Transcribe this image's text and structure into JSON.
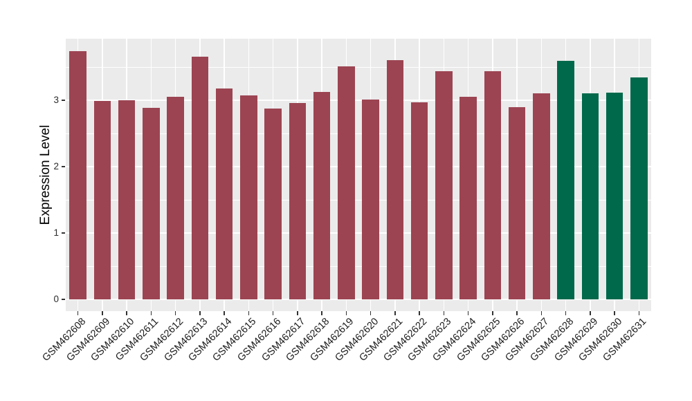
{
  "chart_data": {
    "type": "bar",
    "title": "",
    "ylabel": "Expression Level",
    "xlabel": "",
    "categories": [
      "GSM462608",
      "GSM462609",
      "GSM462610",
      "GSM462611",
      "GSM462612",
      "GSM462613",
      "GSM462614",
      "GSM462615",
      "GSM462616",
      "GSM462617",
      "GSM462618",
      "GSM462619",
      "GSM462620",
      "GSM462621",
      "GSM462622",
      "GSM462623",
      "GSM462624",
      "GSM462625",
      "GSM462626",
      "GSM462627",
      "GSM462628",
      "GSM462629",
      "GSM462630",
      "GSM462631"
    ],
    "values": [
      3.74,
      2.99,
      3.0,
      2.89,
      3.05,
      3.66,
      3.18,
      3.07,
      2.87,
      2.96,
      3.13,
      3.51,
      3.01,
      3.6,
      2.97,
      3.44,
      3.05,
      3.44,
      2.9,
      3.1,
      3.59,
      3.1,
      3.11,
      3.34
    ],
    "groups": [
      "red",
      "red",
      "red",
      "red",
      "red",
      "red",
      "red",
      "red",
      "red",
      "red",
      "red",
      "red",
      "red",
      "red",
      "red",
      "red",
      "red",
      "red",
      "red",
      "red",
      "green",
      "green",
      "green",
      "green"
    ],
    "group_colors": {
      "red": "#9C4452",
      "green": "#00694B"
    },
    "yticks": [
      0,
      1,
      2,
      3
    ],
    "yticks_minor": [
      0.5,
      1.5,
      2.5,
      3.5
    ],
    "ylim": [
      0,
      3.93
    ],
    "bar_width_fraction": 0.7,
    "grid": true,
    "legend_position": "none",
    "panel_bg": "#EBEBEB",
    "grid_color": "#FFFFFF",
    "axis_text_color": "#1a1a1a"
  }
}
